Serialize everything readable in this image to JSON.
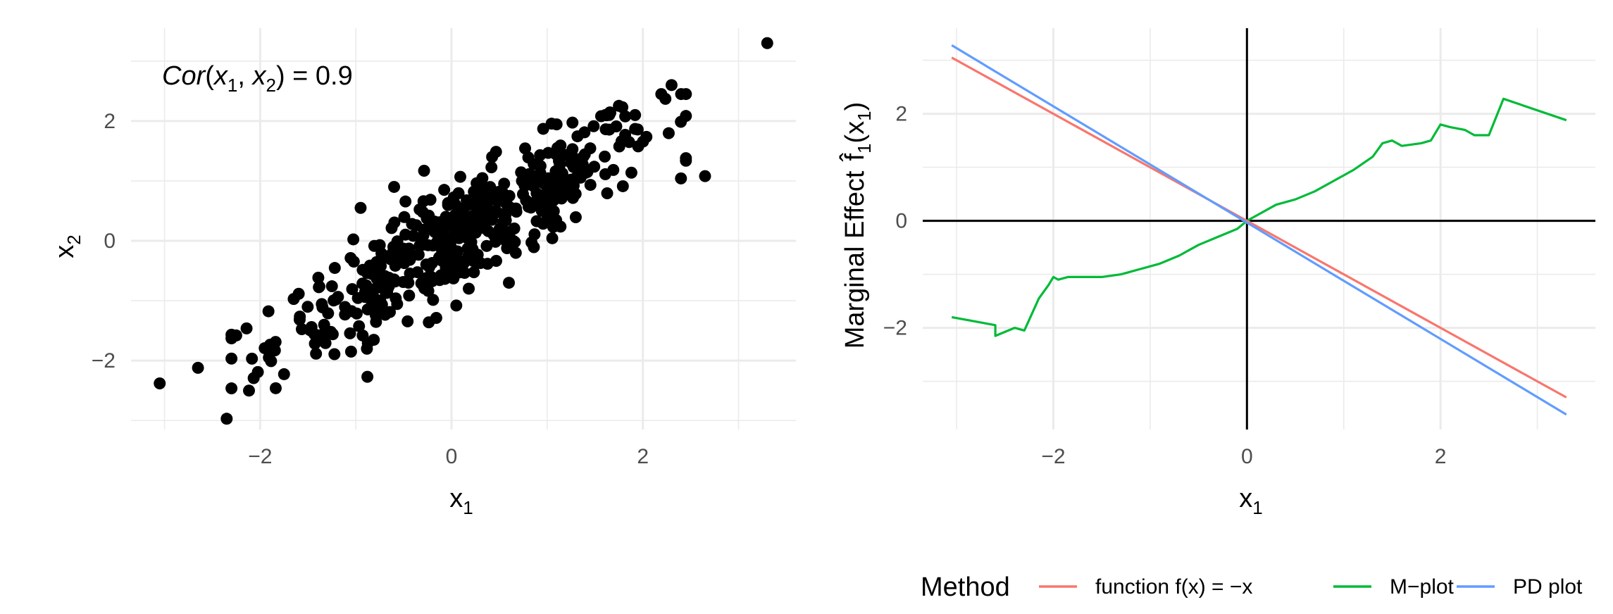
{
  "chart_data": [
    {
      "type": "scatter",
      "xlabel": "x",
      "xlabel_sub": "1",
      "ylabel": "x",
      "ylabel_sub": "2",
      "annotation": {
        "parts": [
          {
            "text": "Cor",
            "italic": true
          },
          {
            "text": "(",
            "italic": false
          },
          {
            "text": "x",
            "italic": true
          },
          {
            "text": "1",
            "sub": true
          },
          {
            "text": ", ",
            "italic": false
          },
          {
            "text": "x",
            "italic": true
          },
          {
            "text": "2",
            "sub": true
          },
          {
            "text": ")",
            "italic": false
          },
          {
            "text": " = 0.9",
            "italic": false
          }
        ]
      },
      "xlim": [
        -3.35,
        3.6
      ],
      "ylim": [
        -3.15,
        3.55
      ],
      "x_ticks": [
        -2,
        0,
        2
      ],
      "x_tick_labels": [
        "−2",
        "0",
        "2"
      ],
      "y_ticks": [
        -2,
        0,
        2
      ],
      "y_tick_labels": [
        "−2",
        "0",
        "2"
      ],
      "grid": true,
      "point_color": "#000000",
      "points_fixed": [
        {
          "x": 3.3,
          "y": 3.3
        },
        {
          "x": -3.05,
          "y": -2.38
        },
        {
          "x": -2.35,
          "y": -2.97
        },
        {
          "x": 2.65,
          "y": 1.08
        },
        {
          "x": 2.45,
          "y": 1.38
        },
        {
          "x": 2.4,
          "y": 2.45
        },
        {
          "x": 2.3,
          "y": 2.6
        },
        {
          "x": -0.6,
          "y": 0.9
        },
        {
          "x": -0.95,
          "y": 0.55
        },
        {
          "x": 0.6,
          "y": -0.7
        },
        {
          "x": -2.65,
          "y": -2.12
        },
        {
          "x": -2.25,
          "y": -1.58
        },
        {
          "x": 0.05,
          "y": -1.08
        },
        {
          "x": -1.05,
          "y": -1.85
        }
      ],
      "points_generated": {
        "count": 486,
        "slope": 0.9,
        "noise_sd": 0.436,
        "x_mean": 0.15,
        "x_sd": 1.0,
        "seed": 12345
      }
    },
    {
      "type": "line",
      "xlabel": "x",
      "xlabel_sub": "1",
      "ylabel": "Marginal Effect",
      "ylabel_hat": "f",
      "ylabel_sub": "1",
      "ylabel_arg": "(x",
      "ylabel_arg_sub": "1",
      "ylabel_close": ")",
      "xlim": [
        -3.35,
        3.6
      ],
      "ylim": [
        -3.9,
        3.6
      ],
      "x_ticks": [
        -2,
        0,
        2
      ],
      "x_tick_labels": [
        "−2",
        "0",
        "2"
      ],
      "y_ticks": [
        -2,
        0,
        2
      ],
      "y_tick_labels": [
        "−2",
        "0",
        "2"
      ],
      "grid": true,
      "zero_lines": true,
      "series": [
        {
          "name": "function f(x) = −x",
          "color": "#F8766D",
          "x": [
            -3.05,
            3.3
          ],
          "y": [
            3.05,
            -3.3
          ]
        },
        {
          "name": "M−plot",
          "color": "#00BA38",
          "x": [
            -3.05,
            -2.6,
            -2.6,
            -2.4,
            -2.3,
            -2.15,
            -2.05,
            -2.0,
            -1.95,
            -1.85,
            -1.7,
            -1.5,
            -1.3,
            -1.1,
            -0.9,
            -0.7,
            -0.5,
            -0.3,
            -0.1,
            0.0,
            0.1,
            0.3,
            0.5,
            0.7,
            0.9,
            1.1,
            1.3,
            1.4,
            1.5,
            1.6,
            1.8,
            1.9,
            2.0,
            2.1,
            2.25,
            2.35,
            2.5,
            2.65,
            3.3
          ],
          "y": [
            -1.8,
            -1.95,
            -2.15,
            -2.0,
            -2.05,
            -1.45,
            -1.2,
            -1.05,
            -1.1,
            -1.05,
            -1.05,
            -1.05,
            -1.0,
            -0.9,
            -0.8,
            -0.65,
            -0.45,
            -0.3,
            -0.15,
            0.0,
            0.1,
            0.3,
            0.4,
            0.55,
            0.75,
            0.95,
            1.2,
            1.45,
            1.5,
            1.4,
            1.45,
            1.5,
            1.8,
            1.75,
            1.7,
            1.6,
            1.6,
            2.28,
            1.88
          ]
        },
        {
          "name": "PD plot",
          "color": "#619CFF",
          "x": [
            -3.05,
            3.3
          ],
          "y": [
            3.28,
            -3.62
          ]
        }
      ]
    }
  ],
  "legend": {
    "title": "Method",
    "position": "bottom",
    "items": [
      {
        "label": "function f(x) = −x",
        "color": "#F8766D"
      },
      {
        "label": "M−plot",
        "color": "#00BA38"
      },
      {
        "label": "PD plot",
        "color": "#619CFF"
      }
    ]
  }
}
